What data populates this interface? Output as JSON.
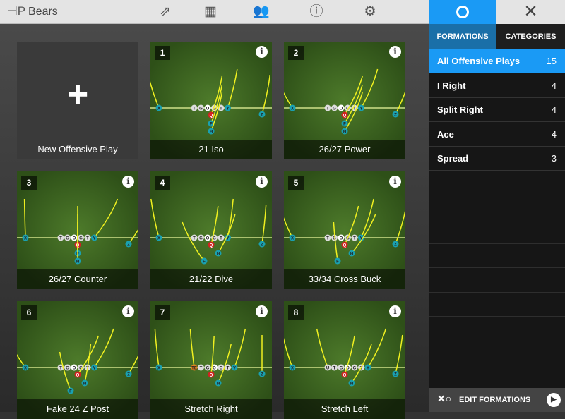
{
  "header": {
    "title": "Bears",
    "icons": [
      "logo-icon",
      "share-icon",
      "grid-icon",
      "users-icon",
      "info-icon",
      "gear-icon"
    ]
  },
  "sidebar": {
    "tabs": [
      "FORMATIONS",
      "CATEGORIES"
    ],
    "items": [
      {
        "label": "All Offensive Plays",
        "count": "15",
        "selected": true
      },
      {
        "label": "I Right",
        "count": "4"
      },
      {
        "label": "Split Right",
        "count": "4"
      },
      {
        "label": "Ace",
        "count": "4"
      },
      {
        "label": "Spread",
        "count": "3"
      }
    ],
    "footer": "EDIT FORMATIONS",
    "accent": "#1a9af5"
  },
  "new_play": "New Offensive Play",
  "plays": [
    {
      "num": "1",
      "name": "21 Iso",
      "players": [
        "X",
        "T",
        "G",
        "O",
        "G",
        "T",
        "Y",
        "Z",
        "Q",
        "F",
        "H"
      ]
    },
    {
      "num": "2",
      "name": "26/27 Power",
      "players": [
        "X",
        "T",
        "G",
        "O",
        "G",
        "T",
        "Y",
        "Z",
        "Q",
        "F",
        "H"
      ]
    },
    {
      "num": "3",
      "name": "26/27 Counter",
      "players": [
        "X",
        "T",
        "G",
        "O",
        "G",
        "T",
        "Y",
        "Z",
        "Q",
        "F",
        "H"
      ]
    },
    {
      "num": "4",
      "name": "21/22 Dive",
      "players": [
        "X",
        "T",
        "G",
        "O",
        "G",
        "T",
        "Y",
        "Z",
        "Q",
        "H",
        "F"
      ]
    },
    {
      "num": "5",
      "name": "33/34 Cross Buck",
      "players": [
        "X",
        "T",
        "G",
        "O",
        "G",
        "T",
        "Y",
        "Z",
        "Q",
        "H",
        "F"
      ]
    },
    {
      "num": "6",
      "name": "Fake 24 Z Post",
      "players": [
        "X",
        "T",
        "G",
        "O",
        "G",
        "T",
        "Y",
        "Z",
        "Q",
        "H",
        "F"
      ]
    },
    {
      "num": "7",
      "name": "Stretch Right",
      "players": [
        "X",
        "TE",
        "T",
        "G",
        "O",
        "G",
        "T",
        "Y",
        "Z",
        "Q",
        "H"
      ]
    },
    {
      "num": "8",
      "name": "Stretch Left",
      "players": [
        "X",
        "U",
        "T",
        "G",
        "O",
        "G",
        "T",
        "Y",
        "Z",
        "Q",
        "H"
      ]
    }
  ]
}
